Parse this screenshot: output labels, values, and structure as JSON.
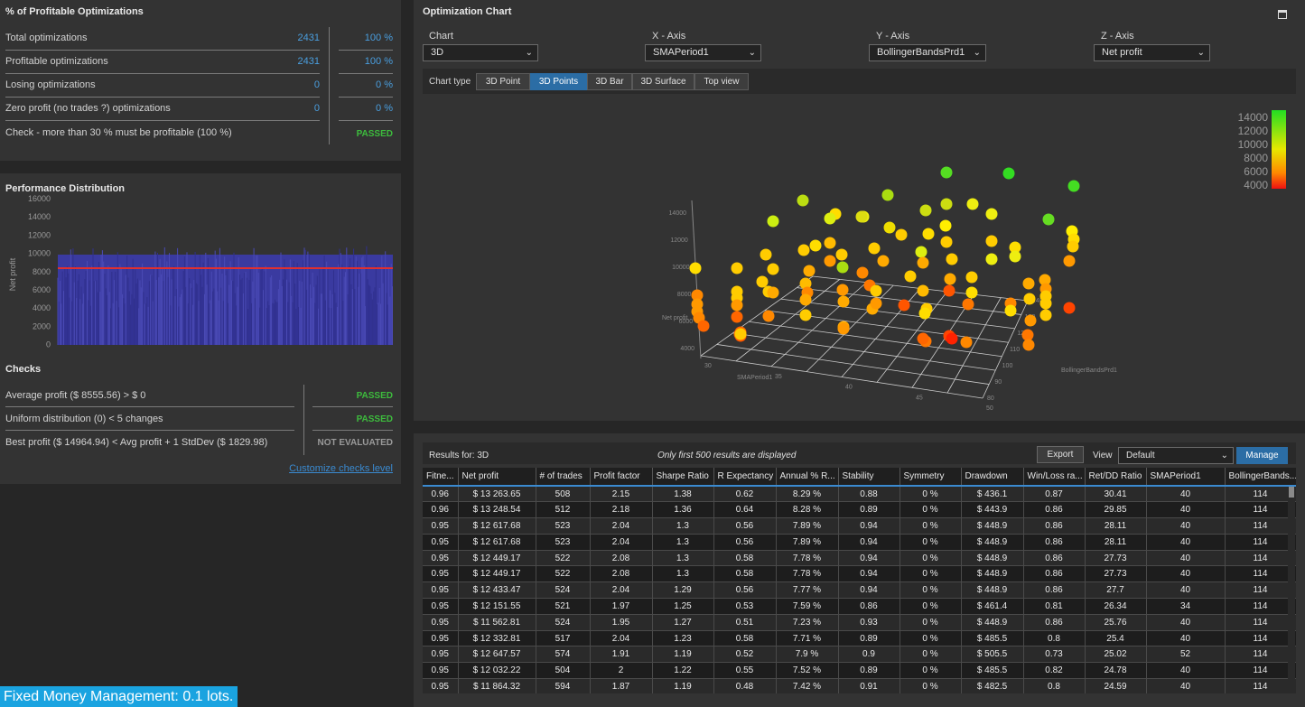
{
  "profitable": {
    "title": "% of Profitable Optimizations",
    "rows": [
      {
        "label": "Total optimizations",
        "count": "2431",
        "pct": "100 %"
      },
      {
        "label": "Profitable optimizations",
        "count": "2431",
        "pct": "100 %"
      },
      {
        "label": "Losing optimizations",
        "count": "0",
        "pct": "0 %"
      },
      {
        "label": "Zero profit (no trades ?) optimizations",
        "count": "0",
        "pct": "0 %"
      }
    ],
    "check_label": "Check - more than 30 % must be profitable (100 %)",
    "check_status": "PASSED"
  },
  "performance": {
    "title": "Performance Distribution",
    "ylabel": "Net profit",
    "yticks": [
      "16000",
      "14000",
      "12000",
      "10000",
      "8000",
      "6000",
      "4000",
      "2000",
      "0"
    ]
  },
  "checks": {
    "title": "Checks",
    "items": [
      {
        "label": "Average profit ($ 8555.56) > $ 0",
        "status": "PASSED"
      },
      {
        "label": "Uniform distribution (0) < 5 changes",
        "status": "PASSED"
      },
      {
        "label": "Best profit ($ 14964.94) < Avg profit + 1 StdDev ($ 1829.98)",
        "status": "NOT EVALUATED"
      }
    ],
    "customize_link": "Customize checks level"
  },
  "footer_badge": "Fixed Money Management: 0.1 lots.",
  "opt_chart": {
    "title": "Optimization Chart",
    "chart_label": "Chart",
    "chart_value": "3D",
    "x_label": "X - Axis",
    "x_value": "SMAPeriod1",
    "y_label": "Y - Axis",
    "y_value": "BollingerBandsPrd1",
    "z_label": "Z - Axis",
    "z_value": "Net profit",
    "chart_type_label": "Chart type",
    "chart_types": [
      "3D Point",
      "3D Points",
      "3D Bar",
      "3D Surface",
      "Top view"
    ],
    "legend": [
      "14000",
      "12000",
      "10000",
      "8000",
      "6000",
      "4000"
    ],
    "axis_z_ticks": [
      "14000",
      "12000",
      "10000",
      "8000",
      "6000",
      "4000"
    ],
    "axis_z_title": "Net profit",
    "axis_x_ticks": [
      "30",
      "35",
      "40",
      "45",
      "50"
    ],
    "axis_x_title": "SMAPeriod1",
    "axis_y_ticks": [
      "80",
      "90",
      "100",
      "110",
      "120",
      "130",
      "140"
    ],
    "axis_y_title": "BollingerBandsPrd1"
  },
  "results": {
    "results_for": "Results for: 3D",
    "note": "Only first 500 results are displayed",
    "export": "Export",
    "view_label": "View",
    "view_value": "Default",
    "manage": "Manage",
    "columns": [
      "Fitne...",
      "Net profit",
      "# of trades",
      "Profit factor",
      "Sharpe Ratio",
      "R Expectancy",
      "Annual % R...",
      "Stability",
      "Symmetry",
      "Drawdown",
      "Win/Loss ra...",
      "Ret/DD Ratio",
      "SMAPeriod1",
      "BollingerBands..."
    ],
    "rows": [
      [
        "0.96",
        "$ 13 263.65",
        "508",
        "2.15",
        "1.38",
        "0.62",
        "8.29 %",
        "0.88",
        "0 %",
        "$ 436.1",
        "0.87",
        "30.41",
        "40",
        "114"
      ],
      [
        "0.96",
        "$ 13 248.54",
        "512",
        "2.18",
        "1.36",
        "0.64",
        "8.28 %",
        "0.89",
        "0 %",
        "$ 443.9",
        "0.86",
        "29.85",
        "40",
        "114"
      ],
      [
        "0.95",
        "$ 12 617.68",
        "523",
        "2.04",
        "1.3",
        "0.56",
        "7.89 %",
        "0.94",
        "0 %",
        "$ 448.9",
        "0.86",
        "28.11",
        "40",
        "114"
      ],
      [
        "0.95",
        "$ 12 617.68",
        "523",
        "2.04",
        "1.3",
        "0.56",
        "7.89 %",
        "0.94",
        "0 %",
        "$ 448.9",
        "0.86",
        "28.11",
        "40",
        "114"
      ],
      [
        "0.95",
        "$ 12 449.17",
        "522",
        "2.08",
        "1.3",
        "0.58",
        "7.78 %",
        "0.94",
        "0 %",
        "$ 448.9",
        "0.86",
        "27.73",
        "40",
        "114"
      ],
      [
        "0.95",
        "$ 12 449.17",
        "522",
        "2.08",
        "1.3",
        "0.58",
        "7.78 %",
        "0.94",
        "0 %",
        "$ 448.9",
        "0.86",
        "27.73",
        "40",
        "114"
      ],
      [
        "0.95",
        "$ 12 433.47",
        "524",
        "2.04",
        "1.29",
        "0.56",
        "7.77 %",
        "0.94",
        "0 %",
        "$ 448.9",
        "0.86",
        "27.7",
        "40",
        "114"
      ],
      [
        "0.95",
        "$ 12 151.55",
        "521",
        "1.97",
        "1.25",
        "0.53",
        "7.59 %",
        "0.86",
        "0 %",
        "$ 461.4",
        "0.81",
        "26.34",
        "34",
        "114"
      ],
      [
        "0.95",
        "$ 11 562.81",
        "524",
        "1.95",
        "1.27",
        "0.51",
        "7.23 %",
        "0.93",
        "0 %",
        "$ 448.9",
        "0.86",
        "25.76",
        "40",
        "114"
      ],
      [
        "0.95",
        "$ 12 332.81",
        "517",
        "2.04",
        "1.23",
        "0.58",
        "7.71 %",
        "0.89",
        "0 %",
        "$ 485.5",
        "0.8",
        "25.4",
        "40",
        "114"
      ],
      [
        "0.95",
        "$ 12 647.57",
        "574",
        "1.91",
        "1.19",
        "0.52",
        "7.9 %",
        "0.9",
        "0 %",
        "$ 505.5",
        "0.73",
        "25.02",
        "52",
        "114"
      ],
      [
        "0.95",
        "$ 12 032.22",
        "504",
        "2",
        "1.22",
        "0.55",
        "7.52 %",
        "0.89",
        "0 %",
        "$ 485.5",
        "0.82",
        "24.78",
        "40",
        "114"
      ],
      [
        "0.95",
        "$ 11 864.32",
        "594",
        "1.87",
        "1.19",
        "0.48",
        "7.42 %",
        "0.91",
        "0 %",
        "$ 482.5",
        "0.8",
        "24.59",
        "40",
        "114"
      ]
    ]
  },
  "colors": {
    "accent": "#2b6da5",
    "passed": "#3dbb3d",
    "link": "#4a9fe0",
    "hist": "#3a3aa0",
    "mean_line": "#e03030"
  }
}
